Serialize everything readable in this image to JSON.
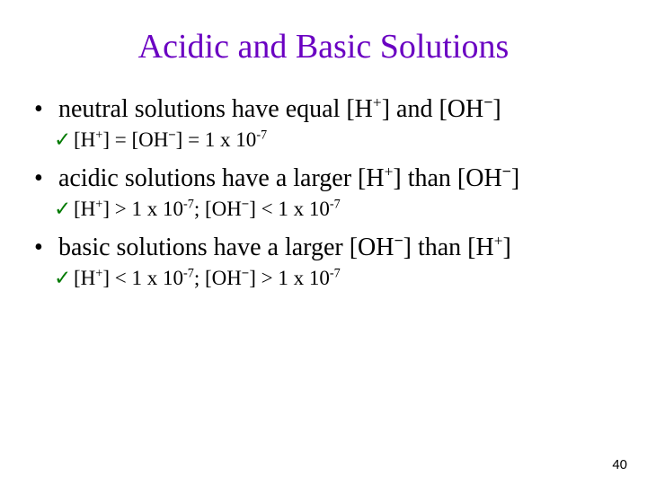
{
  "title": {
    "text": "Acidic and Basic Solutions",
    "color": "#6a00c2"
  },
  "check_color": "#007a00",
  "bullets": [
    {
      "l1_pre": "neutral solutions have equal [H",
      "l1_sup1": "+",
      "l1_mid": "] and [OH",
      "l1_sup2": "−",
      "l1_post": "]",
      "l2_pre": "[H",
      "l2_sup1": "+",
      "l2_mid1": "] = [OH",
      "l2_sup2": "−",
      "l2_mid2": "] = 1 x 10",
      "l2_sup3": "-7",
      "l2_post": ""
    },
    {
      "l1_pre": "acidic solutions have a larger [H",
      "l1_sup1": "+",
      "l1_mid": "] than [OH",
      "l1_sup2": "−",
      "l1_post": "]",
      "l2_pre": "[H",
      "l2_sup1": "+",
      "l2_mid1": "] > 1 x 10",
      "l2_sup2": "-7",
      "l2_mid2": "; [OH",
      "l2_sup3": "−",
      "l2_mid3": "] < 1 x 10",
      "l2_sup4": "-7",
      "l2_post": ""
    },
    {
      "l1_pre": "basic solutions have a larger [OH",
      "l1_sup1": "−",
      "l1_mid": "] than [H",
      "l1_sup2": "+",
      "l1_post": "]",
      "l2_pre": "[H",
      "l2_sup1": "+",
      "l2_mid1": "] < 1 x 10",
      "l2_sup2": "-7",
      "l2_mid2": "; [OH",
      "l2_sup3": "−",
      "l2_mid3": "] > 1 x 10",
      "l2_sup4": "-7",
      "l2_post": ""
    }
  ],
  "page_number": "40"
}
